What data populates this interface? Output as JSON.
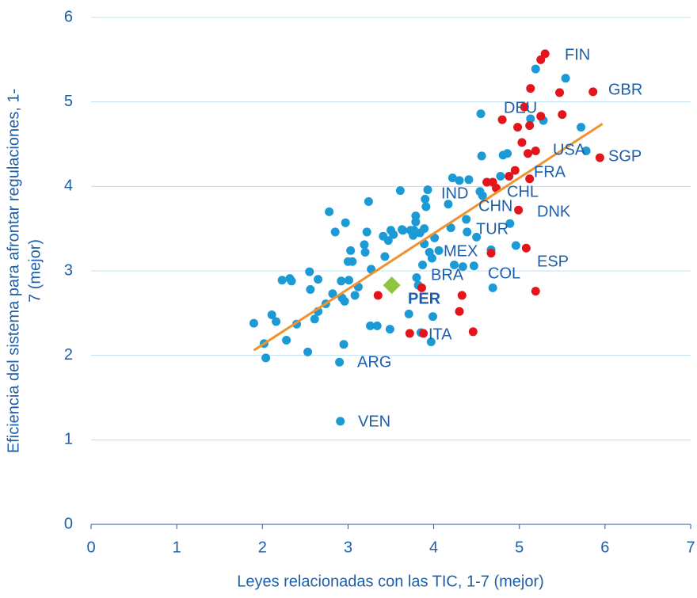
{
  "chart_data": {
    "type": "scatter",
    "xlabel": "Leyes relacionadas con las TIC, 1-7 (mejor)",
    "ylabel": [
      "Eficiencia del sistema para afrontar regulaciones, 1-",
      "7 (mejor)"
    ],
    "xlim": [
      0,
      7
    ],
    "ylim": [
      0,
      6
    ],
    "xticks": [
      0,
      1,
      2,
      3,
      4,
      5,
      6,
      7
    ],
    "yticks": [
      0,
      1,
      2,
      3,
      4,
      5,
      6
    ],
    "grid": true,
    "series": [
      {
        "color": "#1b9ad6",
        "marker": "circle",
        "x": [
          1.9,
          2.02,
          2.04,
          2.11,
          2.16,
          2.23,
          2.28,
          2.32,
          2.34,
          2.4,
          2.53,
          2.55,
          2.56,
          2.61,
          2.65,
          2.65,
          2.74,
          2.78,
          2.82,
          2.85,
          2.9,
          2.91,
          2.92,
          2.93,
          2.96,
          2.95,
          2.97,
          3.0,
          3.01,
          3.03,
          3.05,
          3.08,
          3.12,
          3.19,
          3.2,
          3.22,
          3.24,
          3.26,
          3.27,
          3.34,
          3.41,
          3.43,
          3.47,
          3.5,
          3.49,
          3.53,
          3.61,
          3.63,
          3.64,
          3.71,
          3.73,
          3.76,
          3.77,
          3.79,
          3.79,
          3.8,
          3.82,
          3.84,
          3.85,
          3.87,
          3.89,
          3.89,
          3.9,
          3.91,
          3.93,
          3.95,
          3.97,
          3.98,
          3.99,
          4.01,
          4.06,
          4.17,
          4.2,
          4.22,
          4.24,
          4.3,
          4.34,
          4.38,
          4.39,
          4.41,
          4.47,
          4.5,
          4.54,
          4.55,
          4.56,
          4.57,
          4.67,
          4.69,
          4.81,
          4.86,
          4.89,
          4.96,
          5.13,
          5.19,
          5.28,
          5.54,
          5.72,
          5.78,
          4.78
        ],
        "values": [
          2.38,
          2.14,
          1.97,
          2.48,
          2.4,
          2.89,
          2.18,
          2.91,
          2.88,
          2.37,
          2.04,
          2.99,
          2.78,
          2.43,
          2.52,
          2.9,
          2.61,
          3.7,
          2.73,
          3.46,
          1.92,
          1.22,
          2.88,
          2.68,
          2.64,
          2.13,
          3.57,
          3.11,
          2.89,
          3.24,
          3.11,
          2.71,
          2.81,
          3.31,
          3.22,
          3.46,
          3.82,
          2.35,
          3.02,
          2.35,
          3.41,
          3.17,
          3.36,
          3.48,
          2.31,
          3.43,
          3.95,
          3.49,
          3.48,
          2.49,
          3.48,
          3.42,
          3.48,
          3.65,
          3.58,
          2.92,
          2.83,
          3.45,
          2.27,
          3.07,
          3.5,
          3.32,
          3.85,
          3.76,
          3.96,
          3.22,
          2.16,
          3.15,
          2.46,
          3.39,
          3.24,
          3.79,
          3.51,
          4.1,
          3.07,
          4.07,
          3.05,
          3.61,
          3.46,
          4.08,
          3.06,
          3.4,
          3.94,
          4.86,
          4.36,
          3.89,
          3.25,
          2.8,
          4.37,
          4.39,
          3.56,
          3.3,
          4.8,
          5.39,
          4.78,
          5.28,
          4.7,
          4.42,
          4.12
        ]
      },
      {
        "color": "#e3151b",
        "marker": "circle",
        "x": [
          3.35,
          3.72,
          3.88,
          3.86,
          4.33,
          4.3,
          4.46,
          4.62,
          4.67,
          4.69,
          4.73,
          4.8,
          4.88,
          4.95,
          4.98,
          4.99,
          5.03,
          5.06,
          5.08,
          5.1,
          5.12,
          5.12,
          5.13,
          5.19,
          5.19,
          5.25,
          5.25,
          5.3,
          5.47,
          5.5,
          5.86,
          5.94
        ],
        "values": [
          2.71,
          2.26,
          2.26,
          2.8,
          2.71,
          2.52,
          2.28,
          4.05,
          3.21,
          4.05,
          3.98,
          4.79,
          4.12,
          4.19,
          4.7,
          3.72,
          4.52,
          4.94,
          3.27,
          4.39,
          4.72,
          4.09,
          5.16,
          4.42,
          2.76,
          4.83,
          5.5,
          5.57,
          5.11,
          4.85,
          5.12,
          4.34
        ]
      },
      {
        "color": "#8cc63f",
        "marker": "diamond",
        "x": [
          3.51
        ],
        "values": [
          2.83
        ]
      }
    ],
    "trendline": {
      "color": "#f0922e",
      "x": [
        1.9,
        5.97
      ],
      "values": [
        2.06,
        4.74
      ]
    },
    "annotations": [
      "FIN",
      "GBR",
      "DEU",
      "USA",
      "SGP",
      "FRA",
      "IND",
      "CHL",
      "CHN",
      "DNK",
      "TUR",
      "MEX",
      "ESP",
      "BRA",
      "COL",
      "PER",
      "ITA",
      "ARG",
      "VEN"
    ]
  }
}
